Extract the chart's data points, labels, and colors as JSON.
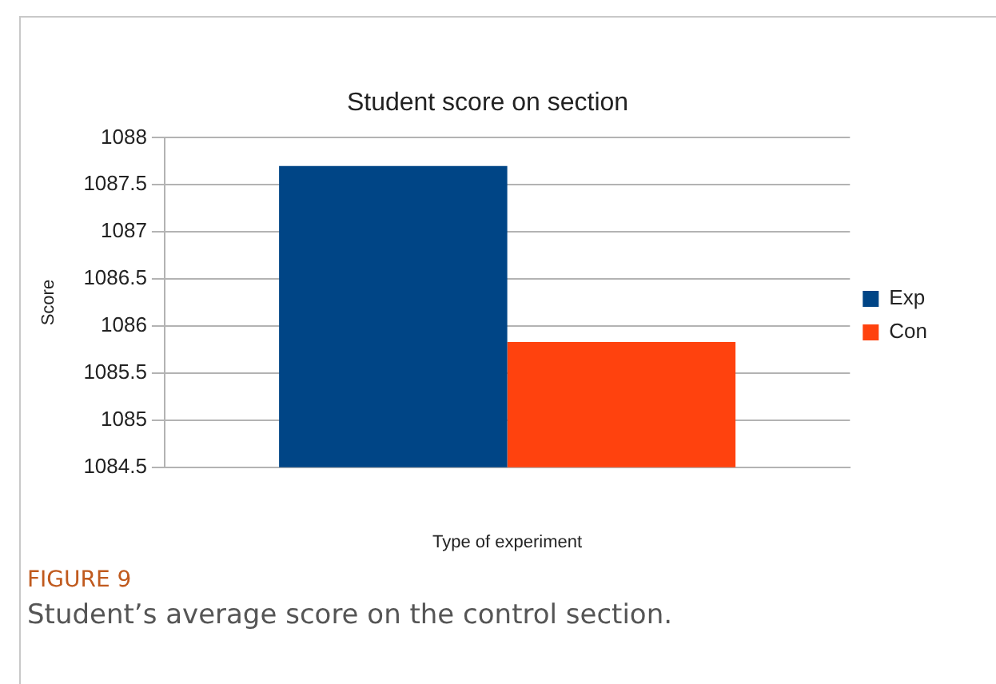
{
  "chart_data": {
    "type": "bar",
    "title": "Student score on section",
    "xlabel": "Type of experiment",
    "ylabel": "Score",
    "categories": [
      null
    ],
    "series": [
      {
        "name": "Exp",
        "color": "#004586",
        "values": [
          1087.7
        ]
      },
      {
        "name": "Con",
        "color": "#ff420e",
        "values": [
          1085.83
        ]
      }
    ],
    "ylim": [
      1084.5,
      1088
    ],
    "yticks": [
      1084.5,
      1085,
      1085.5,
      1086,
      1086.5,
      1087,
      1087.5,
      1088
    ],
    "grid": "y",
    "legend": "right",
    "annotations": [
      "FIGURE 9",
      "Student’s average score on the control section."
    ]
  }
}
